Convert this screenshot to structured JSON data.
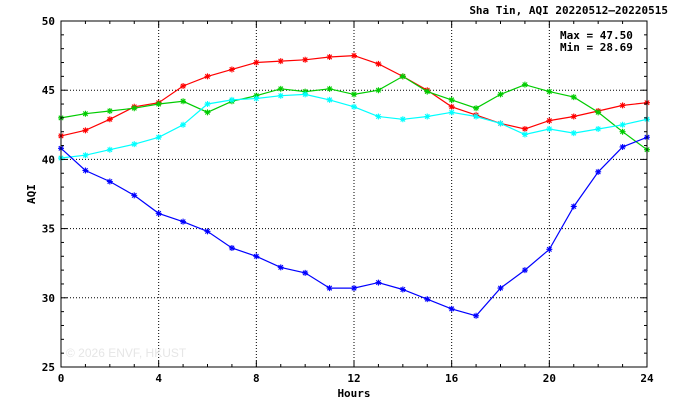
{
  "chart_data": {
    "type": "line",
    "title": "Sha Tin, AQI 20220512–20220515",
    "xlabel": "Hours",
    "ylabel": "AQI",
    "xlim": [
      0,
      24
    ],
    "ylim": [
      25,
      50
    ],
    "xticks": [
      0,
      4,
      8,
      12,
      16,
      20,
      24
    ],
    "yticks": [
      25,
      30,
      35,
      40,
      45,
      50
    ],
    "grid": true,
    "stats": {
      "max": "Max = 47.50",
      "min": "Min = 28.69"
    },
    "watermark": "© 2026 ENVF, HKUST",
    "x": [
      0,
      1,
      2,
      3,
      4,
      5,
      6,
      7,
      8,
      9,
      10,
      11,
      12,
      13,
      14,
      15,
      16,
      17,
      18,
      19,
      20,
      21,
      22,
      23,
      24
    ],
    "series": [
      {
        "color": "#ff0000",
        "values": [
          41.7,
          42.1,
          42.9,
          43.8,
          44.1,
          45.3,
          46.0,
          46.5,
          47.0,
          47.1,
          47.2,
          47.4,
          47.5,
          46.9,
          46.0,
          45.0,
          43.8,
          43.2,
          42.6,
          42.2,
          42.8,
          43.1,
          43.5,
          43.9,
          44.1
        ]
      },
      {
        "color": "#00cc00",
        "values": [
          43.0,
          43.3,
          43.5,
          43.7,
          44.0,
          44.2,
          43.4,
          44.2,
          44.6,
          45.1,
          44.9,
          45.1,
          44.7,
          45.0,
          46.0,
          44.9,
          44.3,
          43.7,
          44.7,
          45.4,
          44.9,
          44.5,
          43.4,
          42.0,
          40.7
        ]
      },
      {
        "color": "#00ffff",
        "values": [
          40.1,
          40.3,
          40.7,
          41.1,
          41.6,
          42.5,
          44.0,
          44.3,
          44.4,
          44.6,
          44.7,
          44.3,
          43.8,
          43.1,
          42.9,
          43.1,
          43.4,
          43.1,
          42.6,
          41.8,
          42.2,
          41.9,
          42.2,
          42.5,
          42.9
        ]
      },
      {
        "color": "#0000ff",
        "values": [
          40.8,
          39.2,
          38.4,
          37.4,
          36.1,
          35.5,
          34.8,
          33.6,
          33.0,
          32.2,
          31.8,
          30.7,
          30.7,
          31.1,
          30.6,
          29.9,
          29.2,
          28.7,
          30.7,
          32.0,
          33.5,
          36.6,
          39.1,
          40.9,
          41.6
        ]
      }
    ]
  }
}
